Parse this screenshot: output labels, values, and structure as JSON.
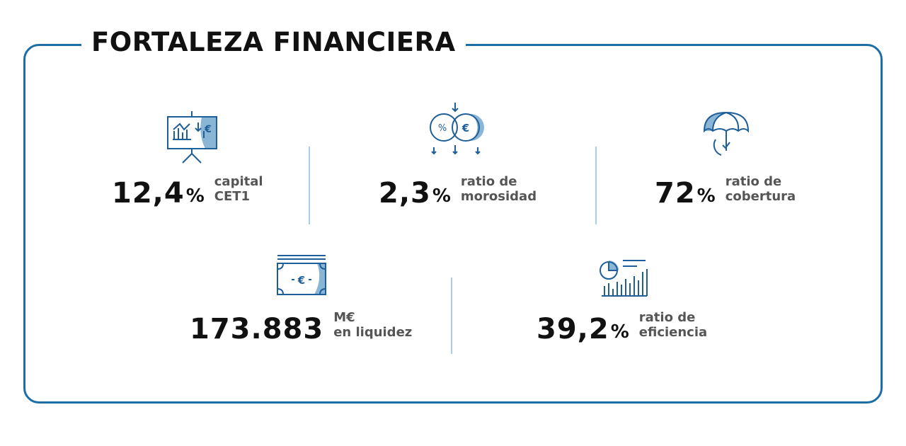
{
  "title": "FORTALEZA FINANCIERA",
  "metrics": [
    {
      "value": "12,4",
      "unit": "%",
      "label": [
        "capital",
        "CET1"
      ]
    },
    {
      "value": "2,3",
      "unit": "%",
      "label": [
        "ratio de",
        "morosidad"
      ]
    },
    {
      "value": "72",
      "unit": "%",
      "label": [
        "ratio de",
        "cobertura"
      ]
    },
    {
      "value": "173.883",
      "label": [
        "M€",
        "en liquidez"
      ]
    },
    {
      "value": "39,2",
      "unit": "%",
      "label": [
        "ratio de",
        "eficiencia"
      ]
    }
  ]
}
